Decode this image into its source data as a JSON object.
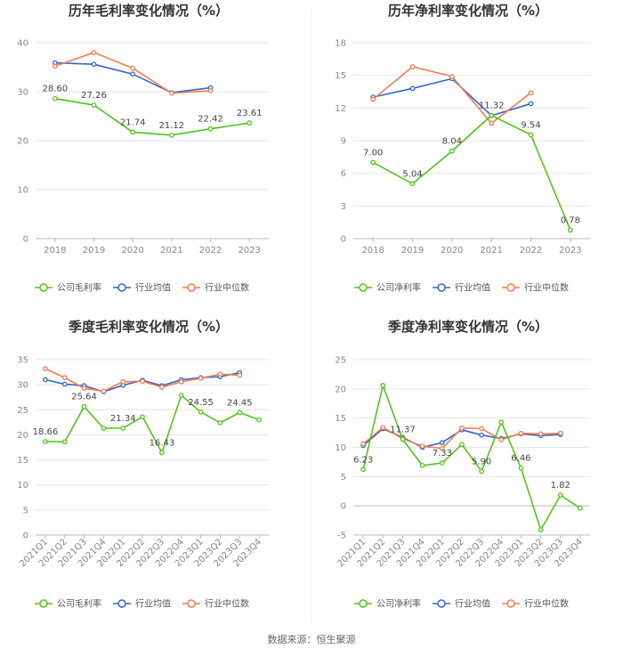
{
  "colors": {
    "company": "#52c41a",
    "industry_avg": "#3366cc",
    "industry_median": "#f07c50",
    "grid": "#e6e6e6"
  },
  "legend": {
    "company_gross": "公司毛利率",
    "company_net": "公司净利率",
    "industry_avg": "行业均值",
    "industry_median": "行业中位数"
  },
  "source": "数据来源：恒生聚源",
  "chart_data": [
    {
      "type": "line",
      "title": "历年毛利率变化情况（%）",
      "categories": [
        "2018",
        "2019",
        "2020",
        "2021",
        "2022",
        "2023"
      ],
      "ylim": [
        0,
        40
      ],
      "yticks": [
        0,
        10,
        20,
        30,
        40
      ],
      "rotate_x": false,
      "series": [
        {
          "name": "公司毛利率",
          "key": "company",
          "values": [
            28.6,
            27.26,
            21.74,
            21.12,
            22.42,
            23.61
          ],
          "labels": [
            "28.60",
            "27.26",
            "21.74",
            "21.12",
            "22.42",
            "23.61"
          ]
        },
        {
          "name": "行业均值",
          "key": "industry_avg",
          "values": [
            35.9,
            35.6,
            33.6,
            29.8,
            30.8,
            null
          ]
        },
        {
          "name": "行业中位数",
          "key": "industry_median",
          "values": [
            35.2,
            38.0,
            34.8,
            29.7,
            30.2,
            null
          ]
        }
      ]
    },
    {
      "type": "line",
      "title": "历年净利率变化情况（%）",
      "categories": [
        "2018",
        "2019",
        "2020",
        "2021",
        "2022",
        "2023"
      ],
      "ylim": [
        0,
        18
      ],
      "yticks": [
        0,
        3,
        6,
        9,
        12,
        15,
        18
      ],
      "rotate_x": false,
      "series": [
        {
          "name": "公司净利率",
          "key": "company",
          "values": [
            7.0,
            5.04,
            8.04,
            11.32,
            9.54,
            0.78
          ],
          "labels": [
            "7.00",
            "5.04",
            "8.04",
            "11.32",
            "9.54",
            "0.78"
          ]
        },
        {
          "name": "行业均值",
          "key": "industry_avg",
          "values": [
            13.0,
            13.8,
            14.7,
            11.3,
            12.4,
            null
          ]
        },
        {
          "name": "行业中位数",
          "key": "industry_median",
          "values": [
            12.8,
            15.8,
            14.9,
            10.6,
            13.4,
            null
          ]
        }
      ]
    },
    {
      "type": "line",
      "title": "季度毛利率变化情况（%）",
      "categories": [
        "2021Q1",
        "2021Q2",
        "2021Q3",
        "2021Q4",
        "2022Q1",
        "2022Q2",
        "2022Q3",
        "2022Q4",
        "2023Q1",
        "2023Q2",
        "2023Q3",
        "2023Q4"
      ],
      "ylim": [
        0,
        35
      ],
      "yticks": [
        0,
        5,
        10,
        15,
        20,
        25,
        30,
        35
      ],
      "rotate_x": true,
      "series": [
        {
          "name": "公司毛利率",
          "key": "company",
          "values": [
            18.66,
            18.6,
            25.64,
            21.3,
            21.34,
            23.6,
            16.43,
            27.9,
            24.55,
            22.4,
            24.45,
            23.0
          ],
          "labels": [
            "18.66",
            "",
            "25.64",
            "",
            "21.34",
            "",
            "16.43",
            "",
            "24.55",
            "",
            "24.45",
            ""
          ]
        },
        {
          "name": "行业均值",
          "key": "industry_avg",
          "values": [
            31.0,
            30.1,
            29.8,
            28.6,
            29.9,
            30.9,
            29.8,
            31.0,
            31.4,
            31.6,
            32.4,
            null
          ]
        },
        {
          "name": "行业中位数",
          "key": "industry_median",
          "values": [
            33.2,
            31.4,
            29.3,
            28.7,
            30.6,
            30.7,
            29.5,
            30.6,
            31.3,
            32.1,
            31.9,
            null
          ]
        }
      ]
    },
    {
      "type": "line",
      "title": "季度净利率变化情况（%）",
      "categories": [
        "2021Q1",
        "2021Q2",
        "2021Q3",
        "2021Q4",
        "2022Q1",
        "2022Q2",
        "2022Q3",
        "2022Q4",
        "2023Q1",
        "2023Q2",
        "2023Q3",
        "2023Q4"
      ],
      "ylim": [
        -5,
        25
      ],
      "yticks": [
        -5,
        0,
        5,
        10,
        15,
        20,
        25
      ],
      "rotate_x": true,
      "series": [
        {
          "name": "公司净利率",
          "key": "company",
          "values": [
            6.23,
            20.6,
            11.37,
            6.9,
            7.33,
            10.5,
            5.9,
            14.3,
            6.46,
            -4.1,
            1.82,
            -0.4
          ],
          "labels": [
            "6.23",
            "",
            "11.37",
            "",
            "7.33",
            "",
            "5.90",
            "",
            "6.46",
            "",
            "1.82",
            ""
          ]
        },
        {
          "name": "行业均值",
          "key": "industry_avg",
          "values": [
            10.3,
            13.2,
            11.7,
            10.0,
            10.8,
            13.0,
            12.1,
            11.5,
            12.3,
            12.0,
            12.2,
            null
          ]
        },
        {
          "name": "行业中位数",
          "key": "industry_median",
          "values": [
            10.6,
            13.4,
            11.5,
            10.2,
            9.8,
            13.3,
            13.2,
            11.3,
            12.4,
            12.3,
            12.4,
            null
          ]
        }
      ]
    }
  ]
}
